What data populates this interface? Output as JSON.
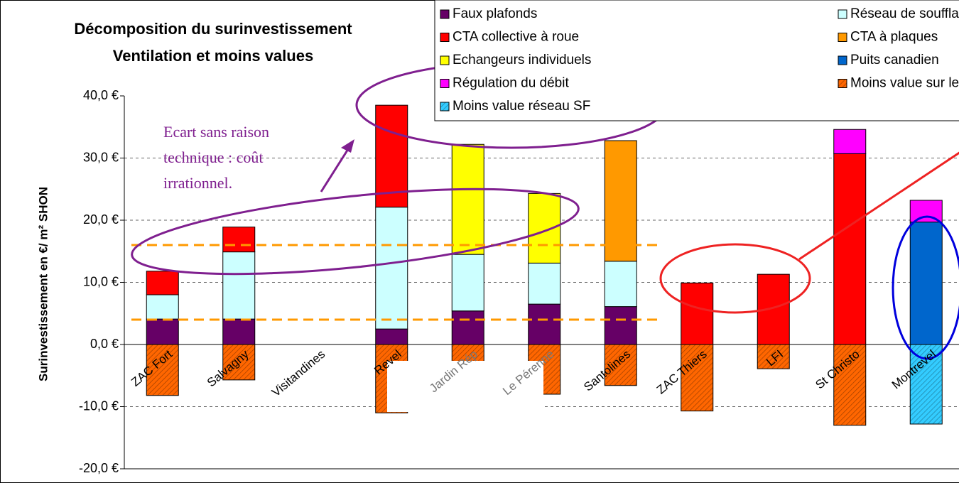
{
  "chart_data": {
    "type": "bar",
    "title": [
      "Décomposition du surinvestissement",
      "Ventilation et moins values"
    ],
    "y_label": "Surinvestissement en €/ m² SHON",
    "categories": [
      "ZAC Fort",
      "Salvagny",
      "Visitandines",
      "Revel",
      "Jardin Rép",
      "Le Pérenne",
      "Santolines",
      "ZAC Thiers",
      "LFI",
      "St Christo",
      "Montrevel"
    ],
    "series": [
      {
        "name": "Faux plafonds",
        "color": "#660066",
        "values": [
          4.1,
          4.1,
          null,
          2.5,
          5.4,
          6.5,
          6.1,
          null,
          null,
          null,
          null
        ]
      },
      {
        "name": "Réseau de soufflage",
        "color": "#ccffff",
        "values": [
          3.9,
          10.8,
          null,
          19.6,
          9.1,
          6.6,
          7.3,
          null,
          null,
          null,
          null
        ]
      },
      {
        "name": "CTA collective à roue",
        "color": "#ff0000",
        "values": [
          3.8,
          4.0,
          null,
          16.4,
          null,
          null,
          null,
          9.9,
          11.3,
          30.7,
          null
        ]
      },
      {
        "name": "CTA à plaques",
        "color": "#ff9900",
        "values": [
          null,
          null,
          null,
          null,
          null,
          null,
          19.4,
          null,
          null,
          null,
          null
        ]
      },
      {
        "name": "Echangeurs individuels",
        "color": "#ffff00",
        "values": [
          null,
          null,
          null,
          null,
          17.7,
          11.2,
          null,
          null,
          null,
          null,
          null
        ]
      },
      {
        "name": "Puits canadien",
        "color": "#0066cc",
        "values": [
          null,
          null,
          null,
          null,
          null,
          null,
          null,
          null,
          null,
          null,
          19.7
        ]
      },
      {
        "name": "Régulation du débit",
        "color": "#ff00ff",
        "values": [
          null,
          null,
          null,
          null,
          null,
          null,
          null,
          null,
          null,
          3.9,
          3.5
        ]
      },
      {
        "name": "Moins value sur le chauffage",
        "color": "#ff6600",
        "pattern": "hatch",
        "values": [
          -8.2,
          -5.7,
          null,
          -11,
          -10,
          -8.0,
          -6.6,
          -10.7,
          -3.9,
          -13.0,
          null
        ]
      },
      {
        "name": "Moins value réseau SF",
        "color": "#33ccff",
        "pattern": "hatch",
        "values": [
          null,
          null,
          null,
          null,
          null,
          null,
          null,
          null,
          null,
          null,
          -12.8
        ]
      }
    ],
    "ylim": [
      -20,
      40
    ],
    "yticks": [
      {
        "value": -20,
        "label": "-20,0 €"
      },
      {
        "value": -10,
        "label": "-10,0 €"
      },
      {
        "value": 0,
        "label": "0,0 €"
      },
      {
        "value": 10,
        "label": "10,0 €"
      },
      {
        "value": 20,
        "label": "20,0 €"
      },
      {
        "value": 30,
        "label": "30,0 €"
      },
      {
        "value": 40,
        "label": "40,0 €"
      }
    ],
    "grid": true,
    "legend": "top-right",
    "annotation": [
      "Ecart sans raison",
      "technique : coût",
      "irrationnel."
    ]
  }
}
